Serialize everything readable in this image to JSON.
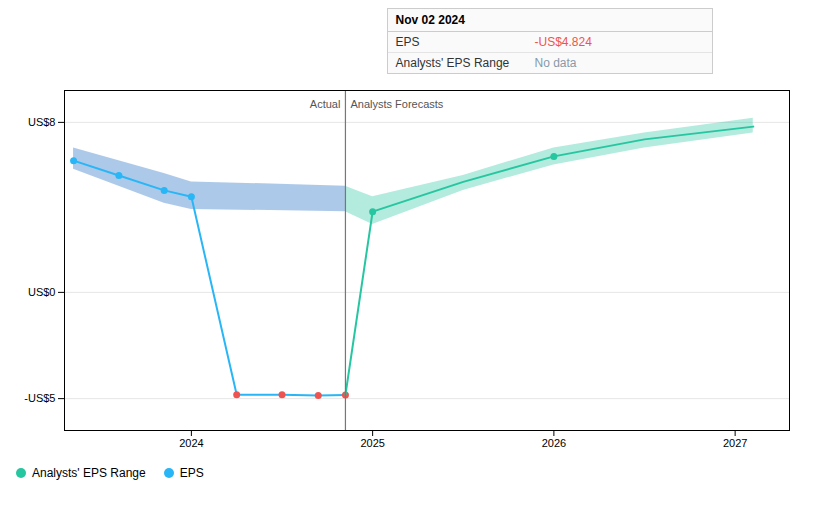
{
  "chart_data": {
    "type": "line",
    "xlim": [
      2023.3,
      2027.3
    ],
    "ylim": [
      -6.5,
      9.5
    ],
    "xticks": [
      2024,
      2025,
      2026,
      2027
    ],
    "yticks": [
      {
        "value": 8,
        "label": "US$8"
      },
      {
        "value": 0,
        "label": "US$0"
      },
      {
        "value": -5,
        "label": "-US$5"
      }
    ],
    "grid": true,
    "legend": "lower left",
    "divider": {
      "x": 2024.85,
      "labels": [
        "Actual",
        "Analysts Forecasts"
      ]
    },
    "series": [
      {
        "type": "area",
        "color": "#1565c0",
        "x": [
          2023.35,
          2023.6,
          2023.85,
          2024.0,
          2024.85
        ],
        "lower": [
          5.8,
          5.0,
          4.2,
          3.9,
          3.8
        ],
        "upper": [
          6.8,
          6.2,
          5.6,
          5.2,
          5.0
        ]
      },
      {
        "name": "Analysts' EPS Range",
        "type": "area",
        "color": "#26c6a0",
        "x": [
          2024.85,
          2025.0,
          2025.5,
          2026.0,
          2026.5,
          2027.1
        ],
        "lower": [
          3.8,
          3.2,
          4.8,
          6.0,
          6.8,
          7.5
        ],
        "upper": [
          5.0,
          4.5,
          5.5,
          6.8,
          7.5,
          8.2
        ]
      },
      {
        "name": "EPS",
        "type": "line",
        "marker": "circle",
        "color": "#29b6f6",
        "x": [
          2023.35,
          2023.6,
          2023.85,
          2024.0,
          2024.25,
          2024.5,
          2024.7,
          2024.85
        ],
        "values": [
          6.2,
          5.5,
          4.8,
          4.5,
          -4.82,
          -4.82,
          -4.85,
          -4.824
        ],
        "colors": [
          "#29b6f6",
          "#29b6f6",
          "#29b6f6",
          "#29b6f6",
          "#ef5350",
          "#ef5350",
          "#ef5350",
          "#ef5350"
        ]
      },
      {
        "type": "line",
        "color": "#26c6a0",
        "x": [
          2024.85,
          2025.0,
          2025.5,
          2026.0,
          2026.5,
          2027.1
        ],
        "values": [
          -4.824,
          3.8,
          5.2,
          6.4,
          7.2,
          7.8
        ]
      },
      {
        "type": "scatter",
        "marker": "circle",
        "color": "#26c6a0",
        "x": [
          2025.0,
          2026.0
        ],
        "values": [
          3.8,
          6.4
        ]
      }
    ],
    "annotations": [
      {
        "title": "Nov 02 2024",
        "rows": [
          {
            "label": "EPS",
            "value": "-US$4.824",
            "color": "#ef5350"
          },
          {
            "label": "Analysts' EPS Range",
            "value": "No data",
            "color": "#8899aa"
          }
        ]
      }
    ]
  }
}
